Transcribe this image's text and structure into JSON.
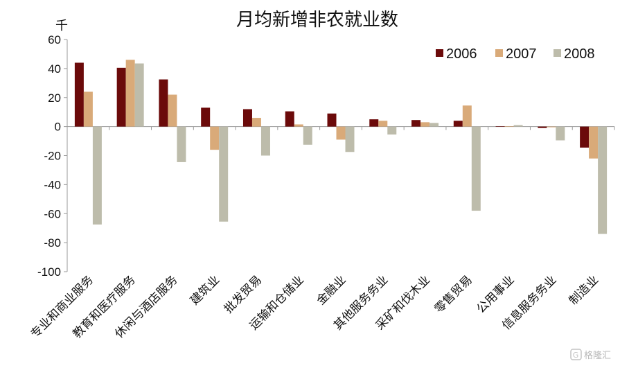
{
  "chart_data": {
    "type": "bar",
    "title": "月均新增非农就业数",
    "unit_label": "千",
    "categories": [
      "专业和商业服务",
      "教育和医疗服务",
      "休闲与酒店服务",
      "建筑业",
      "批发贸易",
      "运输和仓储业",
      "金融业",
      "其他服务务业",
      "采矿和伐木业",
      "零售贸易",
      "公用事业",
      "信息服务务业",
      "制造业"
    ],
    "series": [
      {
        "name": "2006",
        "color": "#6b0a0a",
        "values": [
          44,
          40.5,
          32.5,
          13,
          12,
          10.5,
          9,
          5,
          4.5,
          4,
          0.3,
          -1,
          -14.5
        ]
      },
      {
        "name": "2007",
        "color": "#d9aa79",
        "values": [
          24,
          46,
          22,
          -16,
          6,
          1.5,
          -9,
          4,
          3,
          14.5,
          0.3,
          -0.5,
          -22
        ]
      },
      {
        "name": "2008",
        "color": "#bdbcab",
        "values": [
          -67.5,
          43.5,
          -24.5,
          -65.5,
          -20,
          -12.5,
          -17.5,
          -5.5,
          2.5,
          -58,
          1,
          -9.5,
          -74
        ]
      }
    ],
    "yticks": [
      60,
      40,
      20,
      0,
      -20,
      -40,
      -60,
      -80,
      -100
    ],
    "ytick_labels": [
      "60",
      "40",
      "20",
      "0",
      "-20",
      "-40",
      "-60",
      "-80",
      "-100"
    ],
    "ylim": [
      -100,
      60
    ],
    "legend_position": "top-right",
    "grid": false
  },
  "watermark": "格隆汇"
}
